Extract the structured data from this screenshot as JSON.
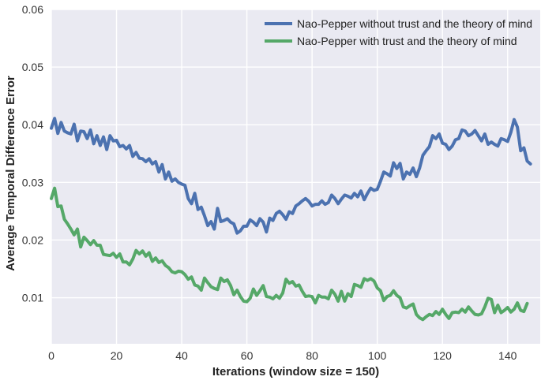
{
  "chart_data": {
    "type": "line",
    "title": "",
    "xlabel": "Iterations (window size = 150)",
    "ylabel": "Average Temporal Difference Error",
    "xlim": [
      0,
      150
    ],
    "ylim": [
      0.002,
      0.06
    ],
    "x_ticks": [
      0,
      20,
      40,
      60,
      80,
      100,
      120,
      140
    ],
    "x_tick_labels": [
      "0",
      "20",
      "40",
      "60",
      "80",
      "100",
      "120",
      "140"
    ],
    "y_ticks": [
      0.01,
      0.02,
      0.03,
      0.04,
      0.05,
      0.06
    ],
    "y_tick_labels": [
      "0.01",
      "0.02",
      "0.03",
      "0.04",
      "0.05",
      "0.06"
    ],
    "grid": true,
    "legend_position": "top-right",
    "x_start": 0,
    "x_step": 1,
    "series": [
      {
        "name": "Nao-Pepper without trust and the theory of mind",
        "color": "#4c72b0",
        "values": [
          0.0394,
          0.0411,
          0.0385,
          0.0404,
          0.0389,
          0.0386,
          0.0384,
          0.0401,
          0.0372,
          0.0389,
          0.0388,
          0.0376,
          0.0391,
          0.0367,
          0.0381,
          0.0364,
          0.0379,
          0.0357,
          0.0381,
          0.0372,
          0.0373,
          0.0362,
          0.0364,
          0.0358,
          0.0364,
          0.0345,
          0.0352,
          0.0342,
          0.0341,
          0.0336,
          0.0341,
          0.0332,
          0.0336,
          0.0318,
          0.0331,
          0.0306,
          0.0318,
          0.0302,
          0.0306,
          0.03,
          0.0297,
          0.0295,
          0.0272,
          0.0263,
          0.0281,
          0.0253,
          0.0257,
          0.0242,
          0.0225,
          0.0232,
          0.0219,
          0.0255,
          0.0232,
          0.0234,
          0.0237,
          0.0231,
          0.0228,
          0.0212,
          0.0216,
          0.0224,
          0.0224,
          0.0235,
          0.0231,
          0.0225,
          0.0237,
          0.0231,
          0.0214,
          0.0238,
          0.0234,
          0.0246,
          0.025,
          0.0244,
          0.0236,
          0.0249,
          0.0246,
          0.0259,
          0.0263,
          0.0268,
          0.0272,
          0.0267,
          0.0259,
          0.0262,
          0.0262,
          0.0268,
          0.0262,
          0.0265,
          0.0278,
          0.0272,
          0.0263,
          0.0271,
          0.0278,
          0.0276,
          0.0273,
          0.0281,
          0.0275,
          0.0285,
          0.027,
          0.0281,
          0.029,
          0.0286,
          0.0288,
          0.0302,
          0.0318,
          0.0315,
          0.0311,
          0.0334,
          0.0324,
          0.0333,
          0.0306,
          0.0318,
          0.0314,
          0.0325,
          0.031,
          0.0325,
          0.0347,
          0.0355,
          0.0362,
          0.0381,
          0.0376,
          0.0384,
          0.0368,
          0.0366,
          0.0357,
          0.0363,
          0.0374,
          0.0376,
          0.0391,
          0.0389,
          0.0381,
          0.0384,
          0.039,
          0.0381,
          0.0372,
          0.0384,
          0.0366,
          0.037,
          0.0366,
          0.0363,
          0.0376,
          0.0374,
          0.0371,
          0.0387,
          0.0409,
          0.0396,
          0.0355,
          0.036,
          0.0337,
          0.0332
        ]
      },
      {
        "name": "Nao-Pepper with trust and the theory of mind",
        "color": "#55a868",
        "values": [
          0.0272,
          0.029,
          0.0258,
          0.0259,
          0.0236,
          0.0228,
          0.0219,
          0.0209,
          0.0219,
          0.0188,
          0.0205,
          0.0199,
          0.0192,
          0.0199,
          0.0191,
          0.0191,
          0.0175,
          0.0174,
          0.0173,
          0.0177,
          0.017,
          0.0176,
          0.0162,
          0.0162,
          0.0157,
          0.0167,
          0.0182,
          0.0176,
          0.0181,
          0.0172,
          0.0178,
          0.0163,
          0.0169,
          0.0161,
          0.0164,
          0.0156,
          0.0152,
          0.0145,
          0.0143,
          0.0146,
          0.0145,
          0.014,
          0.0132,
          0.0136,
          0.0122,
          0.012,
          0.0113,
          0.0134,
          0.0126,
          0.0119,
          0.0116,
          0.0114,
          0.0134,
          0.0128,
          0.0131,
          0.0121,
          0.0105,
          0.0113,
          0.0102,
          0.0094,
          0.0093,
          0.0099,
          0.0115,
          0.0104,
          0.0112,
          0.0121,
          0.0102,
          0.0101,
          0.0098,
          0.0104,
          0.0099,
          0.0108,
          0.0132,
          0.0125,
          0.0128,
          0.012,
          0.0122,
          0.0111,
          0.0102,
          0.0103,
          0.0102,
          0.0091,
          0.0104,
          0.0101,
          0.0101,
          0.0098,
          0.0113,
          0.0106,
          0.0094,
          0.0111,
          0.0094,
          0.0107,
          0.0102,
          0.0123,
          0.0121,
          0.0118,
          0.0133,
          0.013,
          0.0133,
          0.0129,
          0.0117,
          0.0112,
          0.0095,
          0.0102,
          0.0104,
          0.0112,
          0.0104,
          0.01,
          0.0084,
          0.0082,
          0.0086,
          0.0089,
          0.0071,
          0.0065,
          0.0062,
          0.0067,
          0.0071,
          0.0069,
          0.0076,
          0.0071,
          0.008,
          0.0071,
          0.0064,
          0.0074,
          0.0075,
          0.0074,
          0.008,
          0.0075,
          0.0084,
          0.0077,
          0.0071,
          0.007,
          0.0072,
          0.0084,
          0.0099,
          0.0097,
          0.0074,
          0.0087,
          0.0074,
          0.0078,
          0.0083,
          0.0075,
          0.008,
          0.0091,
          0.0078,
          0.0076,
          0.009
        ]
      }
    ]
  }
}
